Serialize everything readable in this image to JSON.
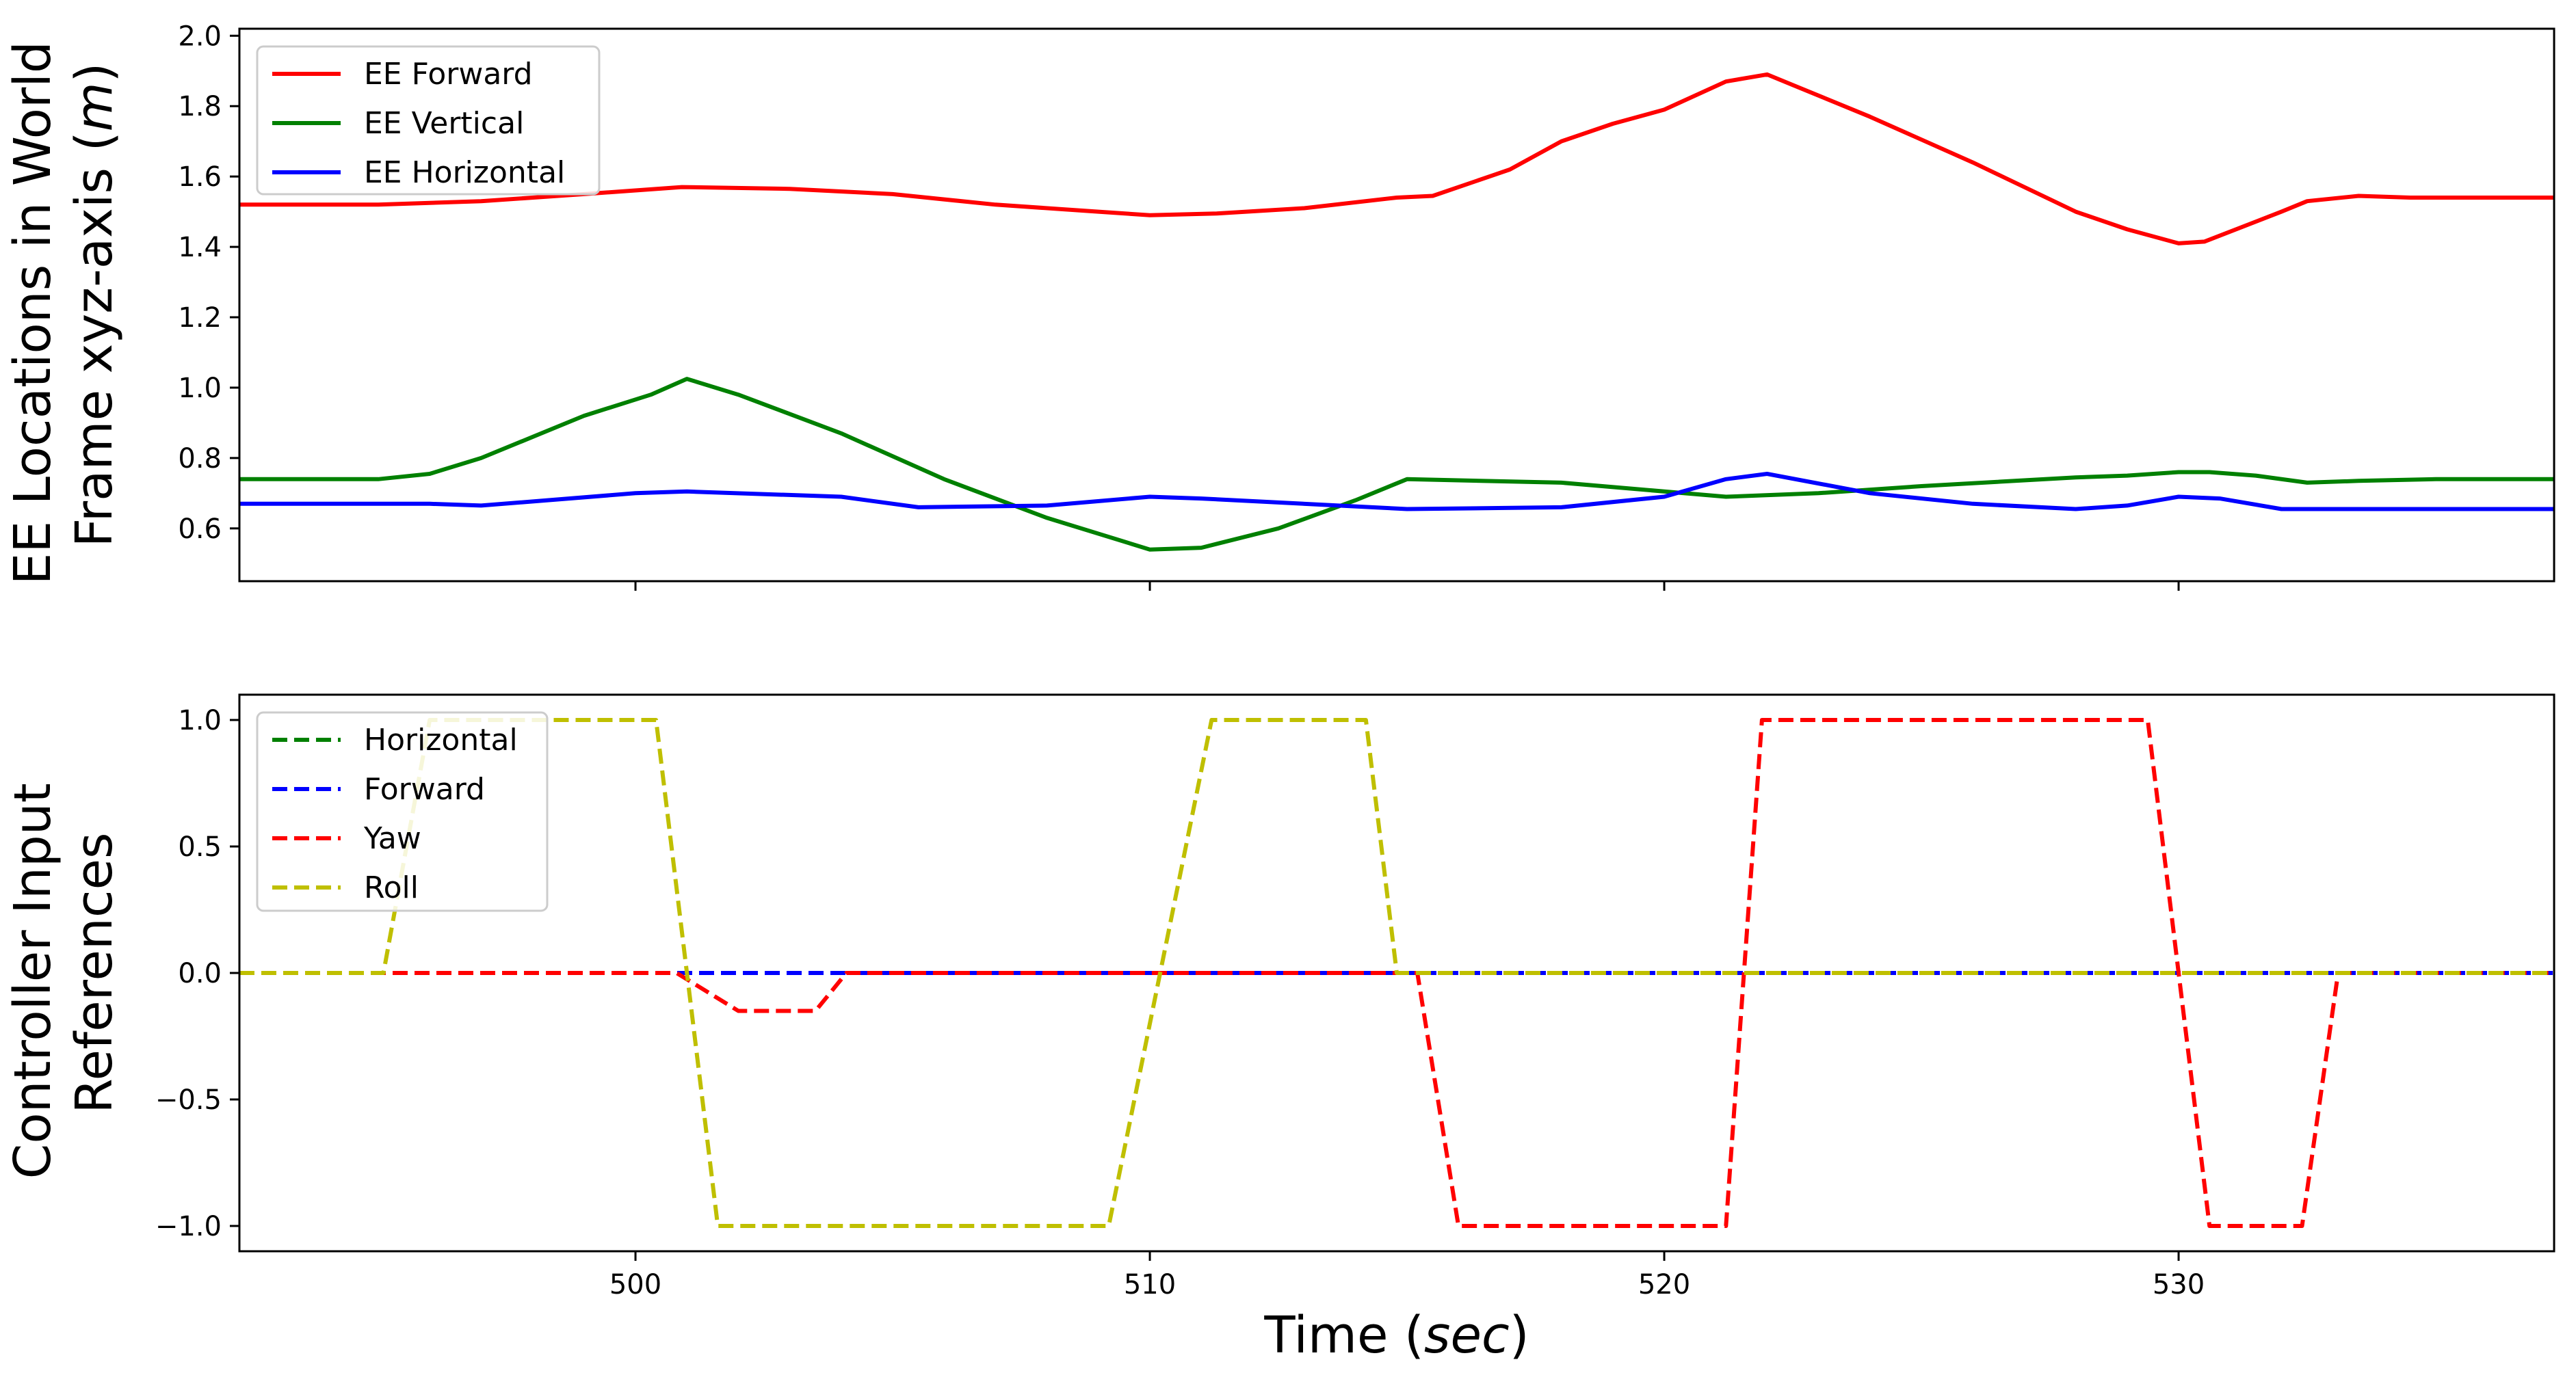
{
  "chart_data": [
    {
      "type": "line",
      "ylabel_line1": "EE Locations in World",
      "ylabel_line2_prefix": "Frame xyz-axis (",
      "ylabel_line2_unit": "m",
      "ylabel_line2_suffix": ")",
      "xlim": [
        492.3,
        537.3
      ],
      "ylim": [
        0.45,
        2.02
      ],
      "xticks": [
        500,
        510,
        520,
        530
      ],
      "yticks": [
        0.6,
        0.8,
        1.0,
        1.2,
        1.4,
        1.6,
        1.8,
        2.0
      ],
      "ytick_labels": [
        "0.6",
        "0.8",
        "1.0",
        "1.2",
        "1.4",
        "1.6",
        "1.8",
        "2.0"
      ],
      "legend_position": "top-left",
      "series": [
        {
          "name": "EE Forward",
          "color": "#ff0000",
          "dash": "solid",
          "x": [
            492.3,
            495.0,
            497.0,
            499.0,
            500.9,
            503.0,
            505.0,
            507.0,
            509.0,
            510.0,
            511.3,
            513.0,
            514.8,
            515.5,
            517.0,
            518.0,
            519.0,
            520.0,
            521.2,
            522.0,
            524.0,
            526.0,
            528.0,
            529.0,
            530.0,
            530.5,
            532.0,
            532.5,
            533.5,
            534.5,
            537.3
          ],
          "y": [
            1.52,
            1.52,
            1.53,
            1.55,
            1.57,
            1.565,
            1.55,
            1.52,
            1.5,
            1.49,
            1.495,
            1.51,
            1.54,
            1.545,
            1.62,
            1.7,
            1.75,
            1.79,
            1.87,
            1.89,
            1.77,
            1.64,
            1.5,
            1.45,
            1.41,
            1.415,
            1.5,
            1.53,
            1.545,
            1.54,
            1.54
          ]
        },
        {
          "name": "EE Vertical",
          "color": "#008000",
          "dash": "solid",
          "x": [
            492.3,
            495.0,
            496.0,
            497.0,
            499.0,
            500.3,
            501.0,
            502.0,
            504.0,
            506.0,
            508.0,
            510.0,
            511.0,
            512.5,
            514.0,
            515.0,
            518.0,
            521.2,
            523.0,
            525.0,
            528.0,
            529.0,
            530.0,
            530.6,
            531.5,
            532.5,
            533.5,
            535.0,
            537.3
          ],
          "y": [
            0.74,
            0.74,
            0.755,
            0.8,
            0.92,
            0.98,
            1.025,
            0.98,
            0.87,
            0.74,
            0.63,
            0.54,
            0.545,
            0.6,
            0.68,
            0.74,
            0.73,
            0.69,
            0.7,
            0.72,
            0.745,
            0.75,
            0.76,
            0.76,
            0.75,
            0.73,
            0.735,
            0.74,
            0.74
          ]
        },
        {
          "name": "EE Horizontal",
          "color": "#0000ff",
          "dash": "solid",
          "x": [
            492.3,
            496.0,
            497.0,
            500.0,
            501.0,
            504.0,
            505.5,
            508.0,
            510.0,
            511.0,
            515.0,
            518.0,
            520.0,
            521.2,
            522.0,
            524.0,
            526.0,
            528.0,
            529.0,
            530.0,
            530.8,
            532.0,
            537.3
          ],
          "y": [
            0.67,
            0.67,
            0.665,
            0.7,
            0.705,
            0.69,
            0.66,
            0.665,
            0.69,
            0.685,
            0.655,
            0.66,
            0.69,
            0.74,
            0.755,
            0.7,
            0.67,
            0.655,
            0.665,
            0.69,
            0.685,
            0.655,
            0.655
          ]
        }
      ]
    },
    {
      "type": "line",
      "ylabel_line1": "Controller Input",
      "ylabel_line2": "References",
      "xlabel_prefix": "Time (",
      "xlabel_unit": "sec",
      "xlabel_suffix": ")",
      "xlim": [
        492.3,
        537.3
      ],
      "ylim": [
        -1.1,
        1.1
      ],
      "xticks": [
        500,
        510,
        520,
        530
      ],
      "yticks": [
        -1.0,
        -0.5,
        0.0,
        0.5,
        1.0
      ],
      "ytick_labels": [
        "−1.0",
        "−0.5",
        "0.0",
        "0.5",
        "1.0"
      ],
      "legend_position": "top-left",
      "series": [
        {
          "name": "Horizontal",
          "color": "#008000",
          "dash": "dashed",
          "x": [
            492.3,
            537.3
          ],
          "y": [
            0,
            0
          ]
        },
        {
          "name": "Forward",
          "color": "#0000ff",
          "dash": "dashed",
          "x": [
            492.3,
            537.3
          ],
          "y": [
            0,
            0
          ]
        },
        {
          "name": "Yaw",
          "color": "#ff0000",
          "dash": "dashed",
          "x": [
            492.3,
            500.8,
            502.0,
            503.5,
            504.1,
            515.2,
            516.0,
            521.2,
            521.9,
            529.4,
            530.6,
            532.4,
            533.1,
            537.3
          ],
          "y": [
            0,
            0,
            -0.15,
            -0.15,
            0,
            0,
            -1,
            -1,
            1,
            1,
            -1,
            -1,
            0,
            0
          ]
        },
        {
          "name": "Roll",
          "color": "#bfbf00",
          "dash": "dashed",
          "x": [
            492.3,
            495.1,
            496.0,
            500.4,
            501.6,
            509.2,
            511.2,
            514.2,
            514.8,
            537.3
          ],
          "y": [
            0,
            0,
            1,
            1,
            -1,
            -1,
            1,
            1,
            0,
            0
          ]
        }
      ]
    }
  ]
}
